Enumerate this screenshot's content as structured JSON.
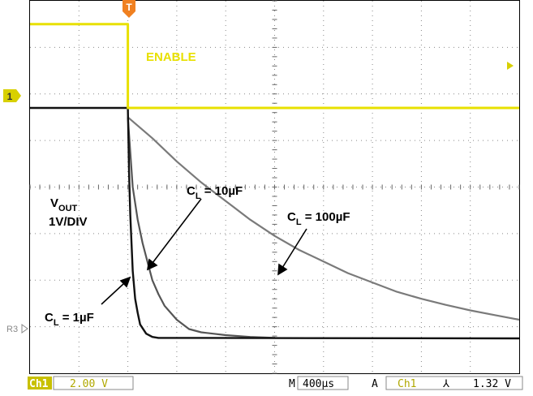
{
  "chart_data": {
    "type": "line",
    "grid": true,
    "divisions": {
      "x": 10,
      "y": 8,
      "ticks_per_division": 5
    },
    "x_axis": {
      "unit": "µs",
      "per_division": 400,
      "range": [
        -800,
        3200
      ]
    },
    "y_axis": {
      "unit": "V",
      "per_division": 1,
      "range": [
        -0.5,
        7.5
      ]
    },
    "trigger": {
      "marker": "T",
      "time_us": 0
    },
    "channel_markers": {
      "ch1": "1",
      "ref": "R3"
    },
    "series": [
      {
        "id": "enable",
        "name": "ENABLE",
        "color": "#e8e000",
        "x": [
          -800,
          -0.1,
          0.1,
          3200
        ],
        "y": [
          7.0,
          7.0,
          5.2,
          5.2
        ]
      },
      {
        "id": "cl1",
        "color": "#111111",
        "tau_us": 36,
        "x": [
          -800,
          0,
          10,
          20,
          40,
          60,
          80,
          100,
          150,
          200,
          250,
          3200
        ],
        "y": [
          5.2,
          5.2,
          3.8,
          2.9,
          1.7,
          1.1,
          0.8,
          0.55,
          0.35,
          0.28,
          0.26,
          0.25
        ]
      },
      {
        "id": "cl10",
        "color": "#555555",
        "tau_us": 200,
        "x": [
          0,
          40,
          80,
          120,
          160,
          200,
          250,
          300,
          400,
          500,
          600,
          800,
          1000,
          1200
        ],
        "y": [
          5.0,
          3.5,
          2.8,
          2.3,
          1.9,
          1.5,
          1.2,
          0.95,
          0.65,
          0.45,
          0.38,
          0.32,
          0.28,
          0.26
        ]
      },
      {
        "id": "cl100",
        "color": "#7a7a7a",
        "tau_us": 1200,
        "x": [
          0,
          200,
          400,
          600,
          800,
          1000,
          1200,
          1400,
          1600,
          1800,
          2000,
          2200,
          2400,
          2600,
          2800,
          3000,
          3200
        ],
        "y": [
          5.0,
          4.55,
          4.05,
          3.6,
          3.2,
          2.8,
          2.45,
          2.15,
          1.9,
          1.65,
          1.45,
          1.25,
          1.1,
          0.97,
          0.85,
          0.75,
          0.65
        ]
      }
    ],
    "annotations": {
      "enable": "ENABLE",
      "vout_main": "V",
      "vout_sub": "OUT",
      "vout_scale": "1V/DIV",
      "cl1_main": "C",
      "cl1_sub": "L",
      "cl1_rest": " = 1µF",
      "cl10_main": "C",
      "cl10_sub": "L",
      "cl10_rest": " = 10µF",
      "cl100_main": "C",
      "cl100_sub": "L",
      "cl100_rest": " = 100µF"
    },
    "status": {
      "ch": "Ch1",
      "volts_div": "2.00 V",
      "m": "M",
      "timebase": "400µs",
      "a": "A",
      "trig_src": "Ch1",
      "trig_slope": "⅄",
      "trig_level": "1.32 V"
    }
  }
}
